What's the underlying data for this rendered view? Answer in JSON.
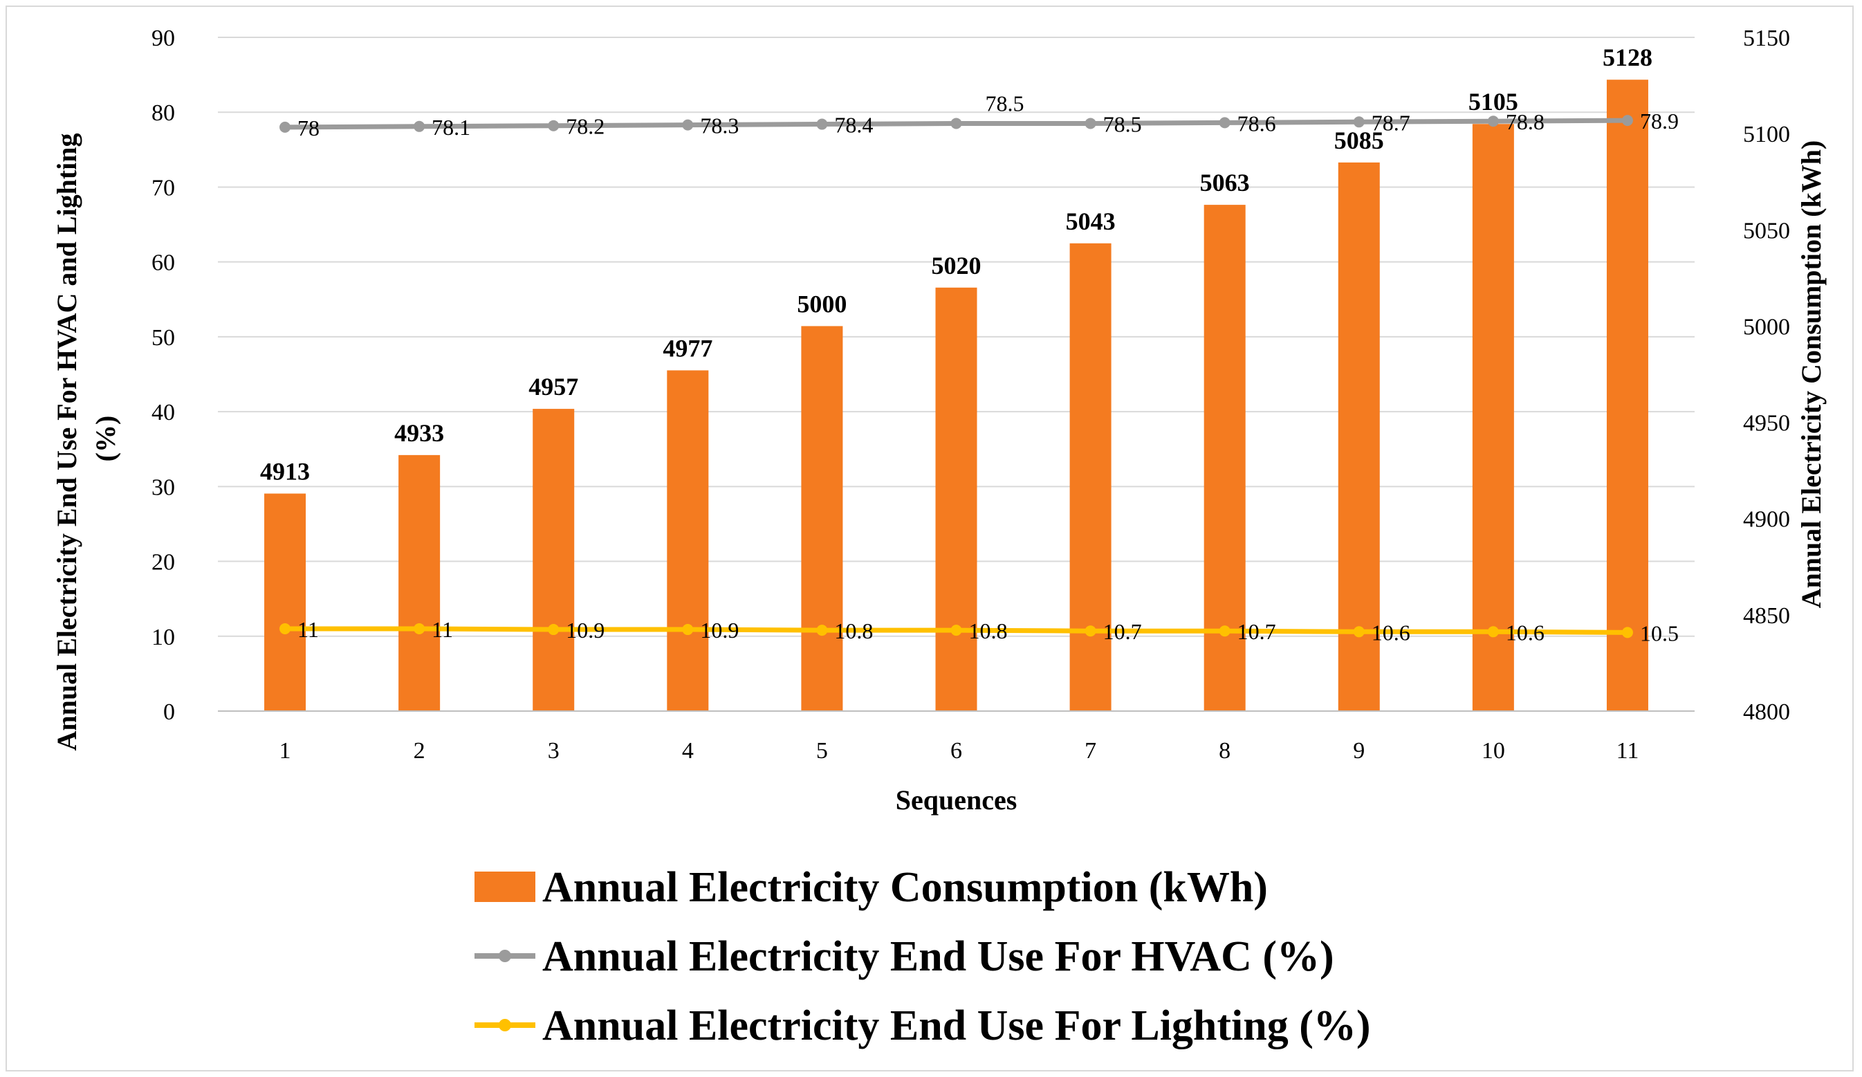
{
  "chart_data": {
    "type": "bar",
    "title": "",
    "categories": [
      "1",
      "2",
      "3",
      "4",
      "5",
      "6",
      "7",
      "8",
      "9",
      "10",
      "11"
    ],
    "xlabel": "Sequences",
    "ylabel_left": "Annual  Electricity  End Use For HVAC and Lighting (%)",
    "ylabel_left_lines": [
      "Annual  Electricity  End Use For HVAC and Lighting",
      "(%)"
    ],
    "ylabel_right": "Annual  Electricity  Consumption  (kWh)",
    "ylim_left": [
      0,
      90
    ],
    "yticks_left": [
      "0",
      "10",
      "20",
      "30",
      "40",
      "50",
      "60",
      "70",
      "80",
      "90"
    ],
    "ylim_right": [
      4800,
      5150
    ],
    "yticks_right": [
      "4800",
      "4850",
      "4900",
      "4950",
      "5000",
      "5050",
      "5100",
      "5150"
    ],
    "grid": true,
    "legend_position": "bottom",
    "series": [
      {
        "name": "Annual Electricity Consumption (kWh)",
        "type": "bar",
        "axis": "right",
        "color": "#f47b20",
        "values": [
          4913,
          4933,
          4957,
          4977,
          5000,
          5020,
          5043,
          5063,
          5085,
          5105,
          5128
        ],
        "labels": [
          "4913",
          "4933",
          "4957",
          "4977",
          "5000",
          "5020",
          "5043",
          "5063",
          "5085",
          "5105",
          "5128"
        ]
      },
      {
        "name": "Annual Electricity End Use For HVAC (%)",
        "type": "line",
        "axis": "left",
        "color": "#9b9b9b",
        "values": [
          78,
          78.1,
          78.2,
          78.3,
          78.4,
          78.5,
          78.5,
          78.6,
          78.7,
          78.8,
          78.9
        ],
        "labels": [
          "78",
          "78.1",
          "78.2",
          "78.3",
          "78.4",
          "78.5",
          "78.5",
          "78.6",
          "78.7",
          "78.8",
          "78.9"
        ]
      },
      {
        "name": "Annual Electricity End Use For Lighting (%)",
        "type": "line",
        "axis": "left",
        "color": "#ffc000",
        "values": [
          11,
          11,
          10.9,
          10.9,
          10.8,
          10.8,
          10.7,
          10.7,
          10.6,
          10.6,
          10.5
        ],
        "labels": [
          "11",
          "11",
          "10.9",
          "10.9",
          "10.8",
          "10.8",
          "10.7",
          "10.7",
          "10.6",
          "10.6",
          "10.5"
        ]
      }
    ]
  }
}
